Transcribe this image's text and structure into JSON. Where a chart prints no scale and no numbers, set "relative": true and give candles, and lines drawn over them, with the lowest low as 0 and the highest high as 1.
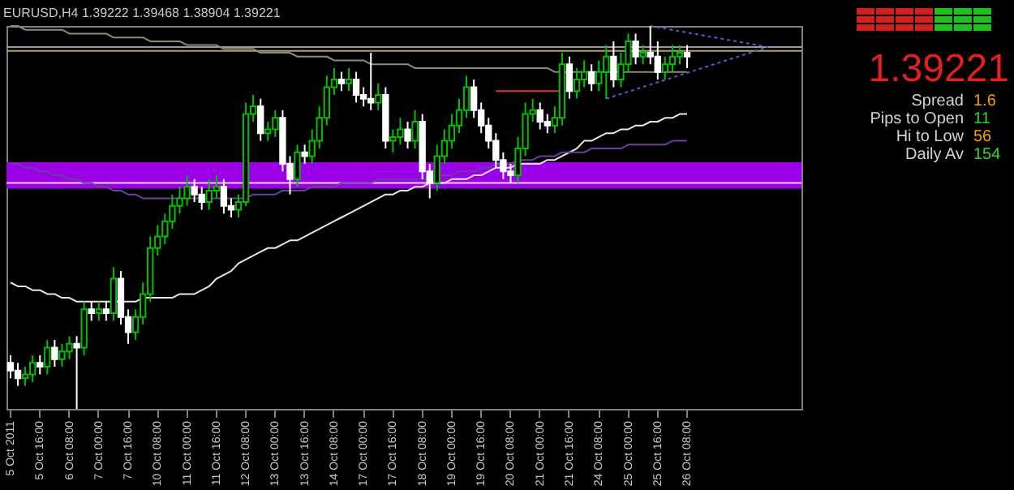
{
  "chart_data": {
    "type": "candlestick",
    "title": "EURUSD,H4 1.39222 1.39468 1.38904 1.39221",
    "relative": true,
    "categories": [
      "5 Oct 2011",
      null,
      null,
      null,
      "5 Oct 16:00",
      null,
      null,
      null,
      "6 Oct 08:00",
      null,
      null,
      null,
      "7 Oct 00:00",
      null,
      null,
      null,
      "7 Oct 16:00",
      null,
      null,
      null,
      "10 Oct 08:00",
      null,
      null,
      null,
      "11 Oct 00:00",
      null,
      null,
      null,
      "11 Oct 16:00",
      null,
      null,
      null,
      "12 Oct 08:00",
      null,
      null,
      null,
      "13 Oct 00:00",
      null,
      null,
      null,
      "13 Oct 16:00",
      null,
      null,
      null,
      "14 Oct 08:00",
      null,
      null,
      null,
      "17 Oct 00:00",
      null,
      null,
      null,
      "17 Oct 16:00",
      null,
      null,
      null,
      "18 Oct 08:00",
      null,
      null,
      null,
      "19 Oct 00:00",
      null,
      null,
      null,
      "19 Oct 16:00",
      null,
      null,
      null,
      "20 Oct 08:00",
      null,
      null,
      null,
      "21 Oct 00:00",
      null,
      null,
      null,
      "21 Oct 16:00",
      null,
      null,
      null,
      "24 Oct 08:00",
      null,
      null,
      null,
      "25 Oct 00:00",
      null,
      null,
      null,
      "25 Oct 16:00",
      null,
      null,
      null,
      "26 Oct 08:00",
      null,
      null,
      null,
      null,
      null,
      null,
      null,
      null,
      null,
      null,
      null,
      null,
      null,
      null,
      null
    ],
    "ohlc": [
      [
        0.12,
        0.14,
        0.08,
        0.1
      ],
      [
        0.1,
        0.12,
        0.06,
        0.08
      ],
      [
        0.08,
        0.11,
        0.06,
        0.09
      ],
      [
        0.09,
        0.14,
        0.07,
        0.12
      ],
      [
        0.12,
        0.14,
        0.09,
        0.11
      ],
      [
        0.11,
        0.18,
        0.09,
        0.16
      ],
      [
        0.16,
        0.18,
        0.11,
        0.13
      ],
      [
        0.13,
        0.17,
        0.11,
        0.15
      ],
      [
        0.15,
        0.19,
        0.13,
        0.17
      ],
      [
        0.17,
        0.19,
        0,
        0.16
      ],
      [
        0.16,
        0.28,
        0.14,
        0.26
      ],
      [
        0.26,
        0.28,
        0.23,
        0.25
      ],
      [
        0.25,
        0.28,
        0.23,
        0.26
      ],
      [
        0.26,
        0.28,
        0.23,
        0.25
      ],
      [
        0.25,
        0.37,
        0.23,
        0.34
      ],
      [
        0.34,
        0.36,
        0.22,
        0.24
      ],
      [
        0.24,
        0.26,
        0.17,
        0.2
      ],
      [
        0.2,
        0.26,
        0.18,
        0.24
      ],
      [
        0.24,
        0.33,
        0.22,
        0.3
      ],
      [
        0.3,
        0.45,
        0.28,
        0.42
      ],
      [
        0.42,
        0.48,
        0.4,
        0.45
      ],
      [
        0.45,
        0.51,
        0.43,
        0.49
      ],
      [
        0.49,
        0.56,
        0.47,
        0.53
      ],
      [
        0.53,
        0.58,
        0.51,
        0.55
      ],
      [
        0.55,
        0.61,
        0.53,
        0.58
      ],
      [
        0.58,
        0.6,
        0.54,
        0.56
      ],
      [
        0.56,
        0.58,
        0.52,
        0.54
      ],
      [
        0.54,
        0.6,
        0.52,
        0.57
      ],
      [
        0.57,
        0.61,
        0.55,
        0.58
      ],
      [
        0.58,
        0.6,
        0.51,
        0.53
      ],
      [
        0.53,
        0.55,
        0.5,
        0.52
      ],
      [
        0.52,
        0.56,
        0.5,
        0.54
      ],
      [
        0.54,
        0.8,
        0.53,
        0.77
      ],
      [
        0.77,
        0.82,
        0.75,
        0.79
      ],
      [
        0.79,
        0.81,
        0.7,
        0.72
      ],
      [
        0.72,
        0.75,
        0.7,
        0.73
      ],
      [
        0.73,
        0.78,
        0.71,
        0.76
      ],
      [
        0.76,
        0.78,
        0.62,
        0.64
      ],
      [
        0.64,
        0.66,
        0.56,
        0.6
      ],
      [
        0.6,
        0.69,
        0.58,
        0.67
      ],
      [
        0.67,
        0.69,
        0.64,
        0.66
      ],
      [
        0.66,
        0.73,
        0.64,
        0.7
      ],
      [
        0.7,
        0.79,
        0.68,
        0.76
      ],
      [
        0.76,
        0.87,
        0.74,
        0.84
      ],
      [
        0.84,
        0.89,
        0.82,
        0.86
      ],
      [
        0.86,
        0.88,
        0.83,
        0.85
      ],
      [
        0.85,
        0.89,
        0.83,
        0.86
      ],
      [
        0.86,
        0.88,
        0.8,
        0.82
      ],
      [
        0.82,
        0.84,
        0.79,
        0.81
      ],
      [
        0.81,
        0.93,
        0.78,
        0.8
      ],
      [
        0.8,
        0.85,
        0.78,
        0.82
      ],
      [
        0.82,
        0.84,
        0.68,
        0.7
      ],
      [
        0.7,
        0.73,
        0.67,
        0.71
      ],
      [
        0.71,
        0.76,
        0.69,
        0.73
      ],
      [
        0.73,
        0.75,
        0.68,
        0.7
      ],
      [
        0.7,
        0.78,
        0.68,
        0.75
      ],
      [
        0.75,
        0.77,
        0.6,
        0.62
      ],
      [
        0.62,
        0.64,
        0.55,
        0.59
      ],
      [
        0.59,
        0.69,
        0.57,
        0.66
      ],
      [
        0.66,
        0.73,
        0.64,
        0.7
      ],
      [
        0.7,
        0.77,
        0.68,
        0.74
      ],
      [
        0.74,
        0.81,
        0.72,
        0.78
      ],
      [
        0.78,
        0.87,
        0.76,
        0.84
      ],
      [
        0.84,
        0.86,
        0.76,
        0.78
      ],
      [
        0.78,
        0.8,
        0.72,
        0.74
      ],
      [
        0.74,
        0.76,
        0.68,
        0.7
      ],
      [
        0.7,
        0.72,
        0.63,
        0.65
      ],
      [
        0.65,
        0.67,
        0.6,
        0.62
      ],
      [
        0.62,
        0.64,
        0.59,
        0.61
      ],
      [
        0.61,
        0.71,
        0.59,
        0.68
      ],
      [
        0.68,
        0.8,
        0.66,
        0.77
      ],
      [
        0.77,
        0.81,
        0.75,
        0.78
      ],
      [
        0.78,
        0.8,
        0.73,
        0.75
      ],
      [
        0.75,
        0.77,
        0.72,
        0.74
      ],
      [
        0.74,
        0.79,
        0.72,
        0.76
      ],
      [
        0.76,
        0.93,
        0.74,
        0.9
      ],
      [
        0.9,
        0.92,
        0.81,
        0.83
      ],
      [
        0.83,
        0.89,
        0.81,
        0.86
      ],
      [
        0.86,
        0.91,
        0.84,
        0.88
      ],
      [
        0.88,
        0.9,
        0.83,
        0.85
      ],
      [
        0.85,
        0.91,
        0.83,
        0.88
      ],
      [
        0.88,
        0.95,
        0.81,
        0.92
      ],
      [
        0.92,
        0.96,
        0.84,
        0.86
      ],
      [
        0.86,
        0.93,
        0.84,
        0.9
      ],
      [
        0.9,
        0.98,
        0.88,
        0.96
      ],
      [
        0.96,
        0.98,
        0.9,
        0.92
      ],
      [
        0.92,
        0.95,
        0.9,
        0.93
      ],
      [
        0.93,
        1,
        0.9,
        0.92
      ],
      [
        0.92,
        0.96,
        0.86,
        0.88
      ],
      [
        0.88,
        0.92,
        0.86,
        0.9
      ],
      [
        0.9,
        0.95,
        0.88,
        0.92
      ],
      [
        0.92,
        0.95,
        0.9,
        0.93
      ],
      [
        0.93,
        0.95,
        0.89,
        0.92
      ],
      null,
      null,
      null,
      null,
      null,
      null,
      null,
      null,
      null,
      null,
      null,
      null,
      null,
      null,
      null
    ],
    "series": [
      {
        "type": "line",
        "color": "#8c8c7a",
        "values": [
          1,
          1,
          0.99,
          0.99,
          0.99,
          0.99,
          0.99,
          0.99,
          0.98,
          0.98,
          0.98,
          0.98,
          0.98,
          0.98,
          0.97,
          0.97,
          0.97,
          0.97,
          0.97,
          0.96,
          0.96,
          0.96,
          0.96,
          0.96,
          0.95,
          0.95,
          0.95,
          0.95,
          0.95,
          0.94,
          0.94,
          0.94,
          0.94,
          0.94,
          0.93,
          0.93,
          0.93,
          0.93,
          0.93,
          0.92,
          0.92,
          0.92,
          0.92,
          0.92,
          0.91,
          0.91,
          0.91,
          0.91,
          0.91,
          0.9,
          0.9,
          0.9,
          0.9,
          0.9,
          0.9,
          0.89,
          0.89,
          0.89,
          0.89,
          0.89,
          0.89,
          0.89,
          0.89,
          0.89,
          0.89,
          0.89,
          0.89,
          0.89,
          0.89,
          0.89,
          0.89,
          0.89,
          0.89,
          0.89,
          0.88,
          0.88,
          0.88,
          0.88,
          0.88,
          0.88,
          0.88,
          0.88,
          0.88,
          0.88,
          0.88,
          0.88,
          0.88,
          0.88,
          0.88,
          0.88,
          0.88,
          0.88,
          0.88,
          null,
          null,
          null,
          null,
          null,
          null,
          null,
          null,
          null,
          null,
          null,
          null,
          null,
          null,
          null
        ]
      },
      {
        "type": "line",
        "color": "#e6e6e6",
        "values": [
          0.33,
          0.32,
          0.32,
          0.31,
          0.31,
          0.3,
          0.3,
          0.29,
          0.29,
          0.28,
          0.28,
          0.28,
          0.28,
          0.28,
          0.28,
          0.28,
          0.28,
          0.28,
          0.29,
          0.29,
          0.29,
          0.29,
          0.29,
          0.3,
          0.3,
          0.3,
          0.31,
          0.32,
          0.34,
          0.35,
          0.36,
          0.38,
          0.39,
          0.4,
          0.41,
          0.42,
          0.42,
          0.43,
          0.44,
          0.44,
          0.45,
          0.46,
          0.47,
          0.48,
          0.49,
          0.5,
          0.51,
          0.52,
          0.53,
          0.54,
          0.55,
          0.56,
          0.56,
          0.57,
          0.57,
          0.58,
          0.58,
          0.59,
          0.59,
          0.59,
          0.6,
          0.6,
          0.6,
          0.61,
          0.61,
          0.62,
          0.63,
          0.63,
          0.63,
          0.64,
          0.64,
          0.64,
          0.64,
          0.65,
          0.65,
          0.66,
          0.67,
          0.68,
          0.7,
          0.7,
          0.71,
          0.72,
          0.72,
          0.73,
          0.73,
          0.74,
          0.74,
          0.75,
          0.75,
          0.76,
          0.76,
          0.77,
          0.77,
          null,
          null,
          null,
          null,
          null,
          null,
          null,
          null,
          null,
          null,
          null,
          null,
          null,
          null,
          null
        ]
      },
      {
        "type": "line",
        "color": "#6a3fa0",
        "values": [
          0.64,
          0.64,
          0.63,
          0.63,
          0.62,
          0.62,
          0.61,
          0.61,
          0.6,
          0.6,
          0.59,
          0.59,
          0.58,
          0.58,
          0.57,
          0.57,
          0.56,
          0.56,
          0.55,
          0.55,
          0.55,
          0.55,
          0.55,
          0.55,
          0.55,
          0.55,
          0.55,
          0.55,
          0.55,
          0.55,
          0.55,
          0.55,
          0.55,
          0.56,
          0.56,
          0.56,
          0.56,
          0.57,
          0.57,
          0.57,
          0.57,
          0.58,
          0.58,
          0.58,
          0.58,
          0.59,
          0.59,
          0.59,
          0.59,
          0.59,
          0.6,
          0.6,
          0.6,
          0.6,
          0.6,
          0.6,
          0.6,
          0.6,
          0.61,
          0.61,
          0.61,
          0.62,
          0.62,
          0.62,
          0.63,
          0.63,
          0.64,
          0.64,
          0.64,
          0.65,
          0.65,
          0.65,
          0.66,
          0.66,
          0.66,
          0.67,
          0.67,
          0.67,
          0.67,
          0.68,
          0.68,
          0.68,
          0.68,
          0.68,
          0.69,
          0.69,
          0.69,
          0.69,
          0.69,
          0.69,
          0.7,
          0.7,
          0.7,
          null,
          null,
          null,
          null,
          null,
          null,
          null,
          null,
          null,
          null,
          null,
          null,
          null,
          null,
          null
        ]
      },
      {
        "type": "line",
        "color": "#e8313f",
        "values": [
          null,
          null,
          null,
          null,
          null,
          null,
          null,
          null,
          null,
          null,
          null,
          null,
          null,
          null,
          null,
          null,
          null,
          null,
          null,
          null,
          null,
          null,
          null,
          null,
          null,
          null,
          null,
          null,
          null,
          null,
          null,
          null,
          null,
          null,
          null,
          null,
          null,
          null,
          null,
          null,
          null,
          null,
          null,
          null,
          null,
          null,
          null,
          null,
          null,
          null,
          null,
          null,
          null,
          null,
          null,
          null,
          null,
          null,
          null,
          null,
          null,
          null,
          null,
          null,
          null,
          null,
          0.83,
          0.83,
          0.83,
          0.83,
          0.83,
          0.83,
          0.83,
          0.83,
          0.83,
          0.83,
          0.83,
          null,
          null,
          null,
          null,
          null,
          null,
          null,
          null,
          null,
          null,
          null,
          null,
          null,
          null,
          null,
          null,
          null,
          null,
          null,
          null,
          null,
          null,
          null,
          null,
          null,
          null,
          null,
          null,
          null,
          null,
          null
        ]
      },
      {
        "type": "line",
        "color": "#5a5ad0",
        "line_style": "dotted",
        "values": [
          null,
          null,
          null,
          null,
          null,
          null,
          null,
          null,
          null,
          null,
          null,
          null,
          null,
          null,
          null,
          null,
          null,
          null,
          null,
          null,
          null,
          null,
          null,
          null,
          null,
          null,
          null,
          null,
          null,
          null,
          null,
          null,
          null,
          null,
          null,
          null,
          null,
          null,
          null,
          null,
          null,
          null,
          null,
          null,
          null,
          null,
          null,
          null,
          null,
          null,
          null,
          null,
          null,
          null,
          null,
          null,
          null,
          null,
          null,
          null,
          null,
          null,
          null,
          null,
          null,
          null,
          null,
          null,
          null,
          null,
          null,
          null,
          null,
          null,
          null,
          null,
          null,
          null,
          null,
          null,
          null,
          null,
          null,
          null,
          null,
          null,
          null,
          1,
          null,
          null,
          null,
          null,
          null,
          null,
          null,
          null,
          null,
          null,
          null,
          null,
          null,
          null,
          null,
          0.945,
          null,
          null,
          null,
          null
        ]
      },
      {
        "type": "line",
        "color": "#5a5ad0",
        "line_style": "dotted",
        "values": [
          null,
          null,
          null,
          null,
          null,
          null,
          null,
          null,
          null,
          null,
          null,
          null,
          null,
          null,
          null,
          null,
          null,
          null,
          null,
          null,
          null,
          null,
          null,
          null,
          null,
          null,
          null,
          null,
          null,
          null,
          null,
          null,
          null,
          null,
          null,
          null,
          null,
          null,
          null,
          null,
          null,
          null,
          null,
          null,
          null,
          null,
          null,
          null,
          null,
          null,
          null,
          null,
          null,
          null,
          null,
          null,
          null,
          null,
          null,
          null,
          null,
          null,
          null,
          null,
          null,
          null,
          null,
          null,
          null,
          null,
          null,
          null,
          null,
          null,
          null,
          null,
          null,
          null,
          null,
          null,
          null,
          0.81,
          null,
          null,
          null,
          null,
          null,
          null,
          null,
          null,
          null,
          null,
          null,
          null,
          null,
          null,
          null,
          null,
          null,
          null,
          null,
          null,
          null,
          0.945,
          null,
          null,
          null,
          null
        ]
      }
    ],
    "bands": [
      {
        "axis": "y",
        "from": 0.575,
        "to": 0.644,
        "color": "#9b00e8"
      }
    ],
    "ref_lines": [
      {
        "axis": "y",
        "value": 0.59,
        "color": "#ffc8ff"
      },
      {
        "axis": "y",
        "value": 0.945,
        "color": "#9a9a9a"
      },
      {
        "axis": "y",
        "value": 0.935,
        "color": "#b0a070"
      }
    ],
    "annotations": [
      "1.39221",
      "Spread",
      "1.6",
      "Pips to Open",
      "11",
      "Hi to Low",
      "56",
      "Daily Av",
      "154"
    ]
  }
}
